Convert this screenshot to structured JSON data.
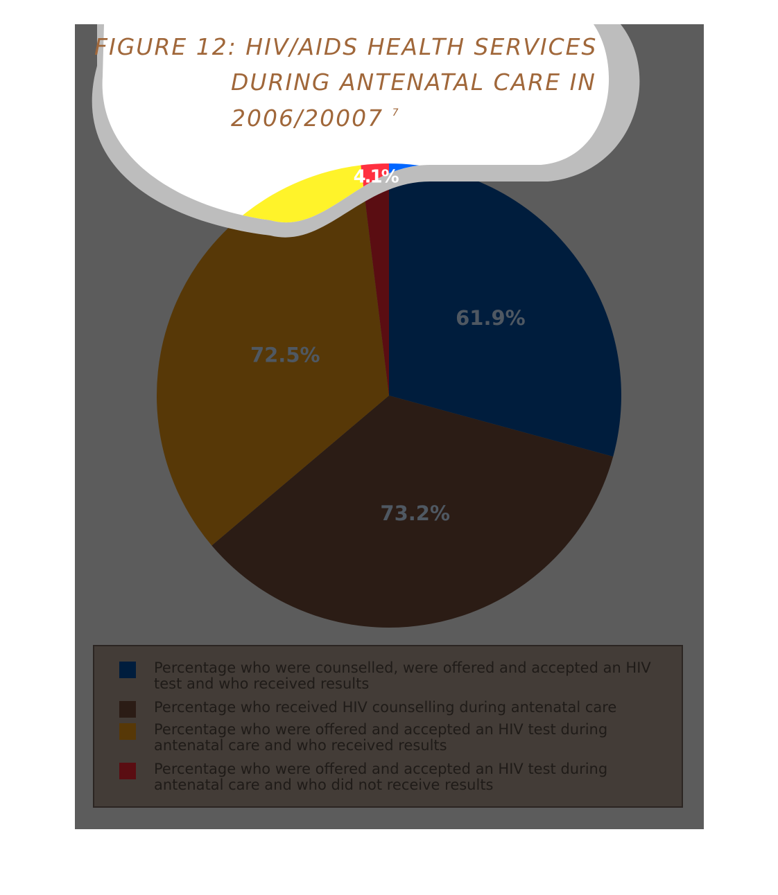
{
  "title": {
    "line1": "FIGURE 12: HIV/AIDS HEALTH SERVICES",
    "line2": "DURING ANTENATAL CARE  IN",
    "line3": "2006/20007",
    "footnote": "7"
  },
  "chart_data": {
    "type": "pie",
    "title": "FIGURE 12: HIV/AIDS HEALTH SERVICES DURING ANTENATAL CARE IN 2006/20007",
    "categories": [
      "Percentage who were counselled, were offered and accepted an HIV test and who received results",
      "Percentage who received HIV counselling during antenatal care",
      "Percentage who were offered and accepted an HIV test during antenatal care and who received results",
      "Percentage who were offered and accepted an HIV test during antenatal care and who did not receive results"
    ],
    "values": [
      61.9,
      73.2,
      72.5,
      4.1
    ],
    "data_labels": [
      "61.9%",
      "73.2%",
      "72.5%",
      "4.1%"
    ],
    "colors": [
      "#001d3d",
      "#2b1c15",
      "#573807",
      "#5a0d12"
    ],
    "highlight_colors": [
      "#0066ff",
      "#2b1c15",
      "#fff32a",
      "#ff3040"
    ],
    "legend_position": "bottom"
  },
  "legend": {
    "items": [
      {
        "color": "#001d3d",
        "label": "Percentage who were counselled, were offered and accepted an HIV test and who received results"
      },
      {
        "color": "#2b1c15",
        "label": "Percentage who received HIV counselling during antenatal care"
      },
      {
        "color": "#573807",
        "label": "Percentage who were offered and accepted an HIV test during antenatal care and who received results"
      },
      {
        "color": "#5a0d12",
        "label": "Percentage who were offered and accepted an HIV test during antenatal care and who did not receive results"
      }
    ]
  }
}
